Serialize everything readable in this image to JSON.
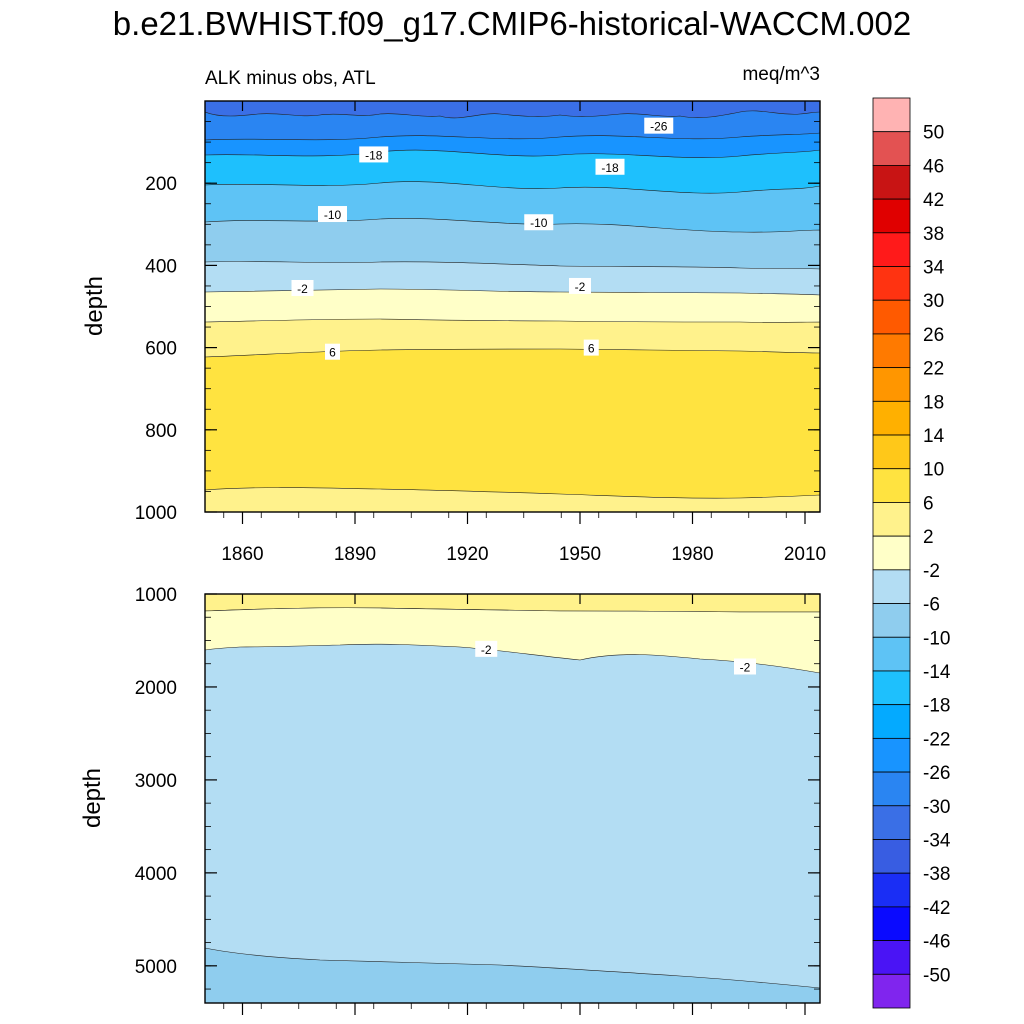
{
  "chart_data": {
    "type": "contour",
    "title": "b.e21.BWHIST.f09_g17.CMIP6-historical-WACCM.002",
    "subtitle_left": "ALK minus obs, ATL",
    "subtitle_right": "meq/m^3",
    "x": {
      "range": [
        1850,
        2014
      ],
      "tick_values": [
        1860,
        1890,
        1920,
        1950,
        1980,
        2010
      ],
      "tick_labels": [
        "1860",
        "1890",
        "1920",
        "1950",
        "1980",
        "2010"
      ]
    },
    "panels": [
      {
        "name": "upper",
        "ylabel": "depth",
        "ylim": [
          0,
          1000
        ],
        "y_inverted": true,
        "tick_values": [
          200,
          400,
          600,
          800,
          1000
        ],
        "tick_labels": [
          "200",
          "400",
          "600",
          "800",
          "1000"
        ],
        "contour_labels": [
          {
            "text": "-26",
            "x": 1971,
            "y": 60
          },
          {
            "text": "-18",
            "x": 1895,
            "y": 130
          },
          {
            "text": "-18",
            "x": 1958,
            "y": 160
          },
          {
            "text": "-10",
            "x": 1884,
            "y": 275
          },
          {
            "text": "-10",
            "x": 1939,
            "y": 295
          },
          {
            "text": "-2",
            "x": 1876,
            "y": 455
          },
          {
            "text": "-2",
            "x": 1950,
            "y": 450
          },
          {
            "text": "6",
            "x": 1884,
            "y": 610
          },
          {
            "text": "6",
            "x": 1953,
            "y": 600
          }
        ]
      },
      {
        "name": "lower",
        "ylabel": "depth",
        "ylim": [
          1000,
          5400
        ],
        "y_inverted": true,
        "tick_values": [
          1000,
          2000,
          3000,
          4000,
          5000
        ],
        "tick_labels": [
          "1000",
          "2000",
          "3000",
          "4000",
          "5000"
        ],
        "contour_labels": [
          {
            "text": "-2",
            "x": 1925,
            "y": 1590
          },
          {
            "text": "-2",
            "x": 1994,
            "y": 1780
          }
        ]
      }
    ],
    "colorbar": {
      "labels": [
        "50",
        "46",
        "42",
        "38",
        "34",
        "30",
        "26",
        "22",
        "18",
        "14",
        "10",
        "6",
        "2",
        "-2",
        "-6",
        "-10",
        "-14",
        "-18",
        "-22",
        "-26",
        "-30",
        "-34",
        "-38",
        "-42",
        "-46",
        "-50"
      ],
      "colors_top_to_bottom": [
        "#ffb3b3",
        "#e35252",
        "#c81414",
        "#e00000",
        "#ff1a1a",
        "#ff3311",
        "#ff5a00",
        "#ff7a00",
        "#ff9600",
        "#ffb000",
        "#ffc819",
        "#ffe340",
        "#fff28c",
        "#ffffc8",
        "#b3ddf3",
        "#8fcdee",
        "#5ec3f5",
        "#1ec0fd",
        "#04aaff",
        "#1894ff",
        "#2a85f2",
        "#3a6fe6",
        "#385de2",
        "#1a2ef5",
        "#0a0aff",
        "#4a14f5",
        "#8025ee"
      ]
    }
  }
}
